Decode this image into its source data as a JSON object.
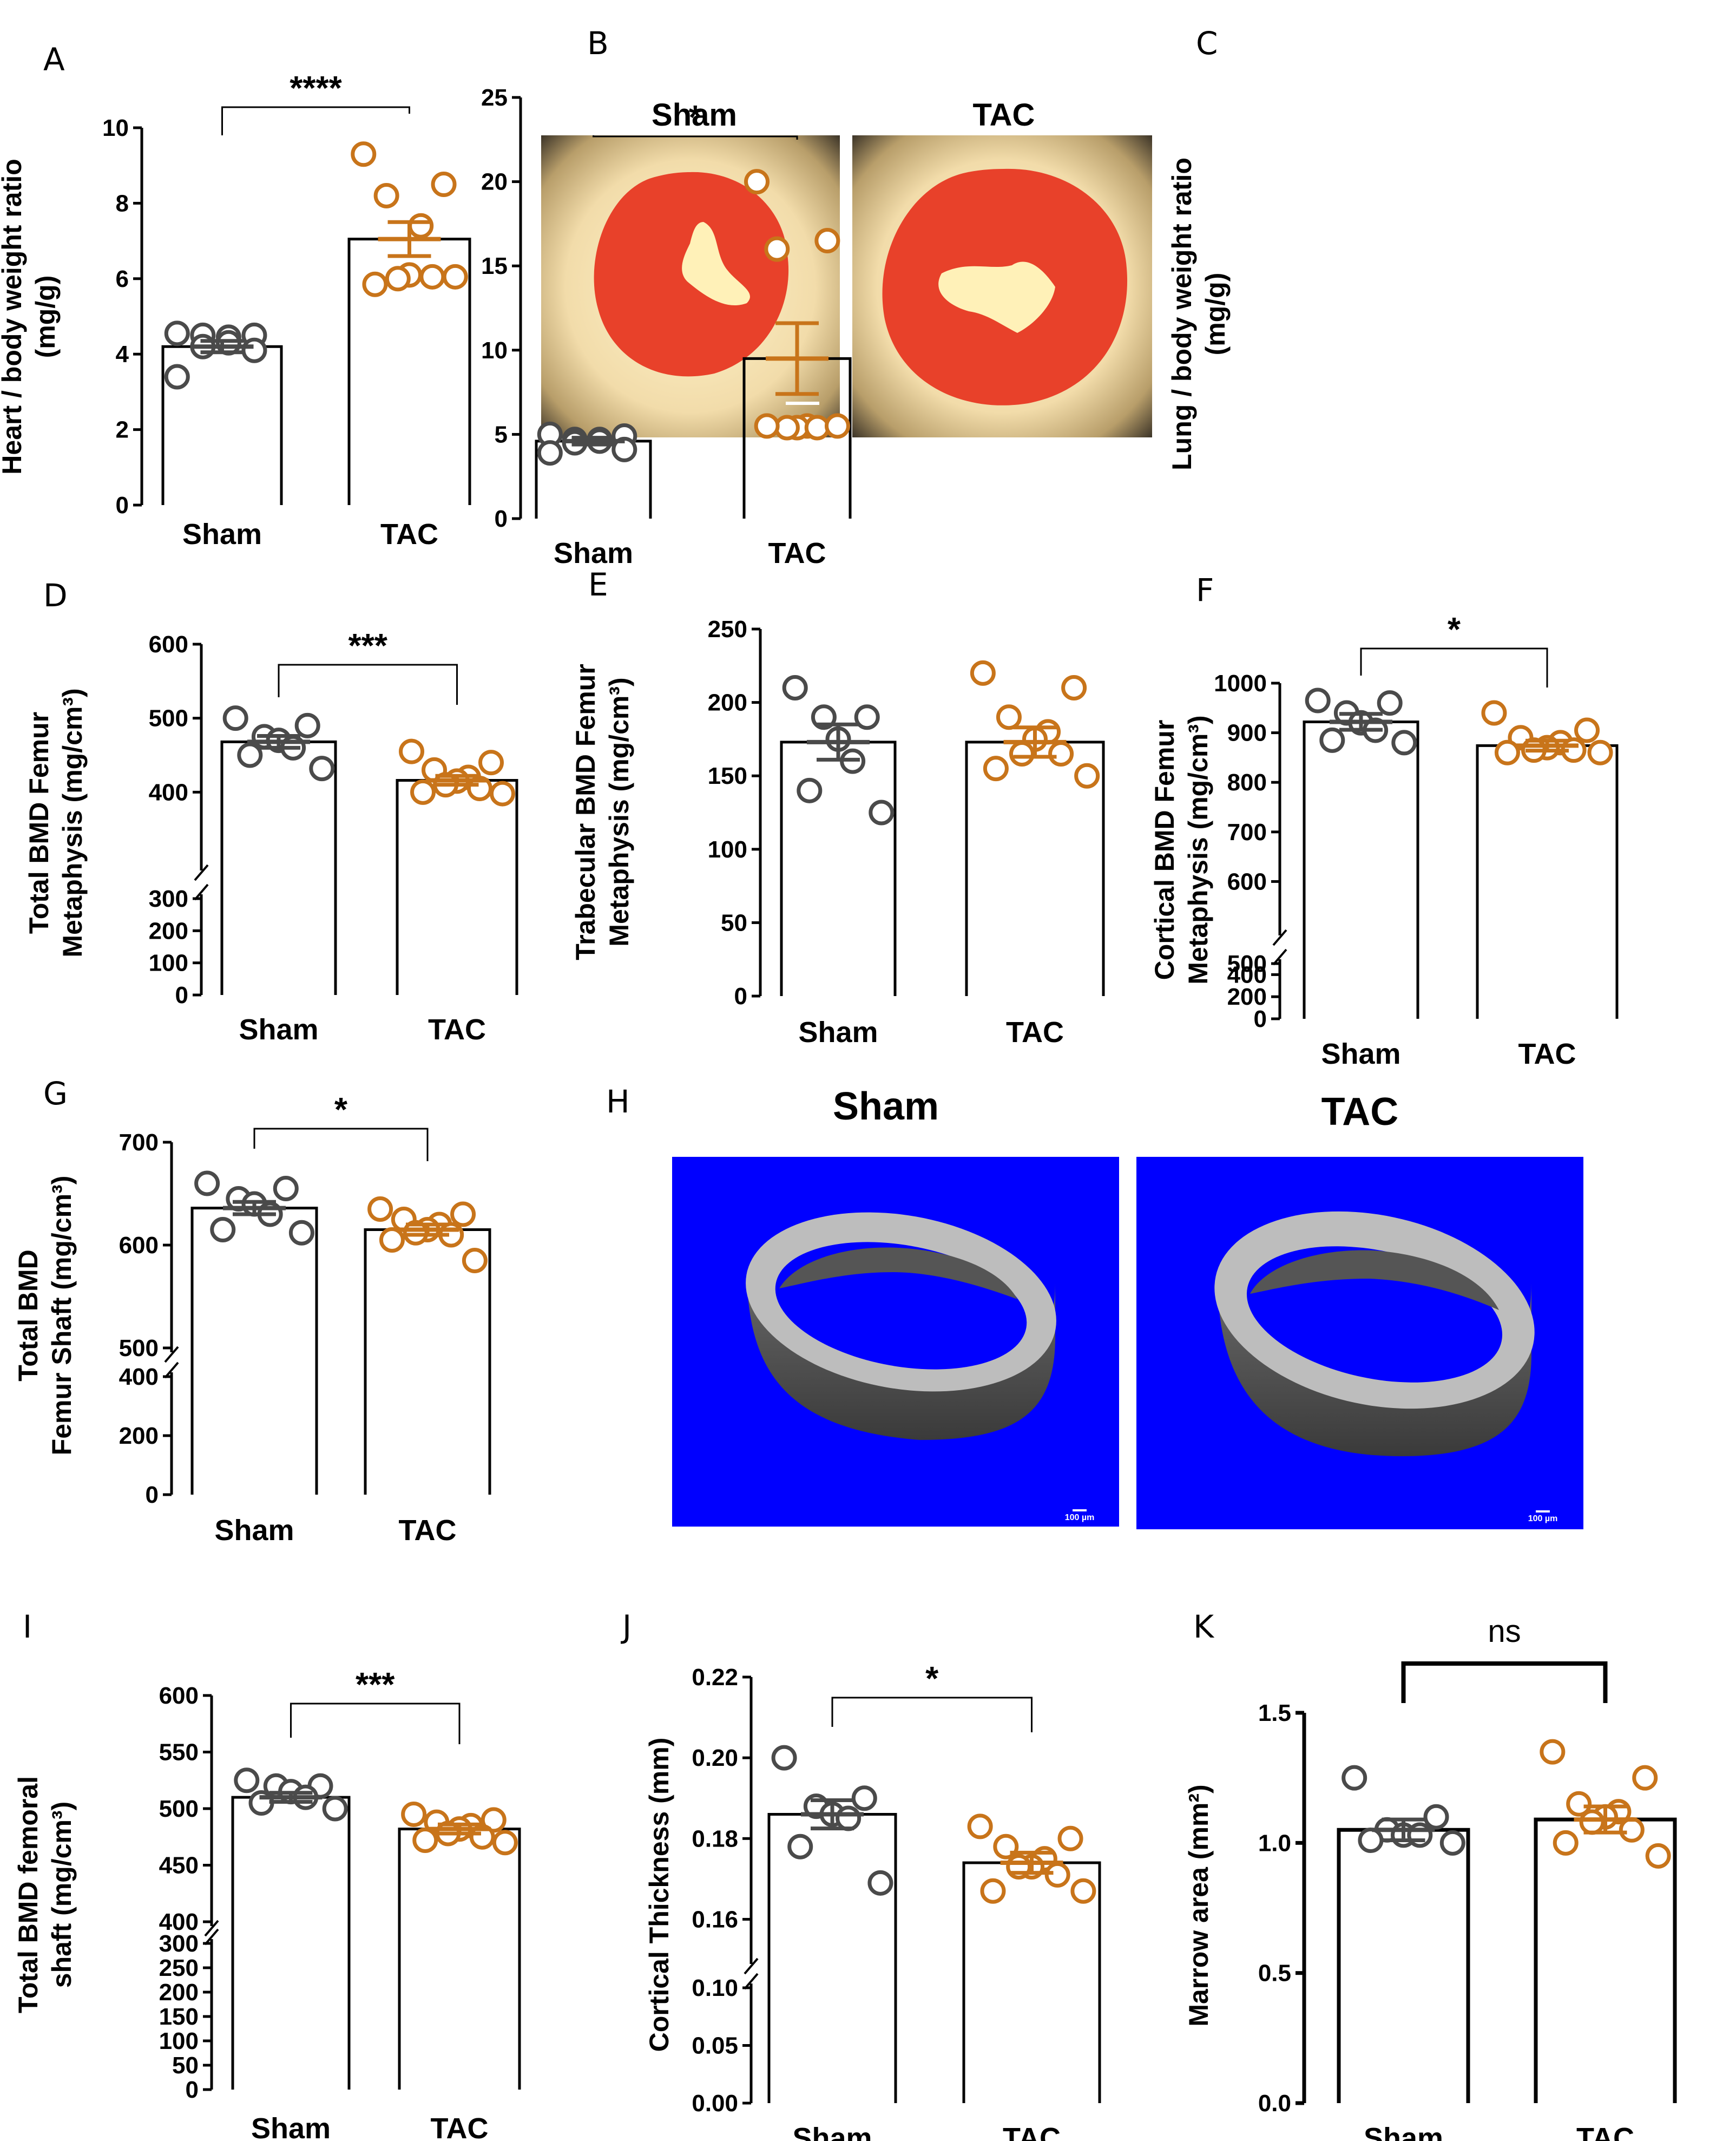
{
  "colors": {
    "sham": "#4a4a4a",
    "tac": "#c8741a",
    "axis": "#000000"
  },
  "chart_data": [
    {
      "id": "A",
      "type": "bar",
      "letter": "A",
      "categories": [
        "Sham",
        "TAC"
      ],
      "ylabel": [
        "Heart / body weight ratio",
        "(mg/g)"
      ],
      "ylim": [
        0,
        10
      ],
      "ticks": [
        {
          "v": 0,
          "t": "0"
        },
        {
          "v": 2,
          "t": "2"
        },
        {
          "v": 4,
          "t": "4"
        },
        {
          "v": 6,
          "t": "6"
        },
        {
          "v": 8,
          "t": "8"
        },
        {
          "v": 10,
          "t": "10"
        }
      ],
      "series": [
        {
          "name": "Sham",
          "mean": 4.2,
          "sem": 0.15,
          "points": [
            4.55,
            4.5,
            4.5,
            4.45,
            4.3,
            4.2,
            4.1,
            3.4
          ]
        },
        {
          "name": "TAC",
          "mean": 7.05,
          "sem": 0.45,
          "points": [
            9.3,
            8.5,
            8.2,
            7.4,
            6.1,
            6.0,
            6.05,
            5.85,
            6.05
          ]
        }
      ],
      "significance": "****",
      "sig_style": "bracket"
    },
    {
      "id": "C",
      "type": "bar",
      "letter": "C",
      "categories": [
        "Sham",
        "TAC"
      ],
      "ylabel": [
        "Lung / body weight ratio",
        "(mg/g)"
      ],
      "ylim": [
        0,
        25
      ],
      "ticks": [
        {
          "v": 0,
          "t": "0"
        },
        {
          "v": 5,
          "t": "5"
        },
        {
          "v": 10,
          "t": "10"
        },
        {
          "v": 15,
          "t": "15"
        },
        {
          "v": 20,
          "t": "20"
        },
        {
          "v": 25,
          "t": "25"
        }
      ],
      "series": [
        {
          "name": "Sham",
          "mean": 4.6,
          "sem": 0.2,
          "points": [
            5.0,
            4.9,
            4.7,
            4.7,
            4.6,
            4.5,
            4.1,
            3.9
          ]
        },
        {
          "name": "TAC",
          "mean": 9.5,
          "sem": 2.1,
          "points": [
            20.0,
            16.5,
            16.0,
            5.5,
            5.4,
            5.4,
            5.4,
            5.5,
            5.5
          ]
        }
      ],
      "significance": "*",
      "sig_style": "bracket"
    },
    {
      "id": "D",
      "type": "bar",
      "letter": "D",
      "categories": [
        "Sham",
        "TAC"
      ],
      "ylabel": [
        "Total BMD Femur",
        "Metaphysis (mg/cm³)"
      ],
      "ylim": [
        0,
        600
      ],
      "broken_axis": {
        "low": [
          0,
          300
        ],
        "high": [
          300,
          600
        ]
      },
      "ticks": [
        {
          "v": 0,
          "t": "0"
        },
        {
          "v": 100,
          "t": "100"
        },
        {
          "v": 200,
          "t": "200"
        },
        {
          "v": 300,
          "t": "300"
        },
        {
          "v": 400,
          "t": "400"
        },
        {
          "v": 500,
          "t": "500"
        },
        {
          "v": 600,
          "t": "600"
        }
      ],
      "series": [
        {
          "name": "Sham",
          "mean": 468,
          "sem": 8,
          "points": [
            500,
            490,
            475,
            470,
            460,
            450,
            432
          ]
        },
        {
          "name": "TAC",
          "mean": 416,
          "sem": 6,
          "points": [
            455,
            440,
            430,
            420,
            415,
            410,
            405,
            400,
            398
          ]
        }
      ],
      "significance": "***",
      "sig_style": "bracket"
    },
    {
      "id": "E",
      "type": "bar",
      "letter": "E",
      "categories": [
        "Sham",
        "TAC"
      ],
      "ylabel": [
        "Trabecular BMD Femur",
        "Metaphysis (mg/cm³)"
      ],
      "ylim": [
        0,
        250
      ],
      "ticks": [
        {
          "v": 0,
          "t": "0"
        },
        {
          "v": 50,
          "t": "50"
        },
        {
          "v": 100,
          "t": "100"
        },
        {
          "v": 150,
          "t": "150"
        },
        {
          "v": 200,
          "t": "200"
        },
        {
          "v": 250,
          "t": "250"
        }
      ],
      "series": [
        {
          "name": "Sham",
          "mean": 173,
          "sem": 12,
          "points": [
            210,
            190,
            190,
            175,
            160,
            140,
            125
          ]
        },
        {
          "name": "TAC",
          "mean": 173,
          "sem": 10,
          "points": [
            220,
            210,
            190,
            180,
            175,
            165,
            165,
            155,
            150
          ]
        }
      ],
      "significance": "",
      "sig_style": "none"
    },
    {
      "id": "F",
      "type": "bar",
      "letter": "F",
      "categories": [
        "Sham",
        "TAC"
      ],
      "ylabel": [
        "Cortical BMD Femur",
        "Metaphysis (mg/cm³)"
      ],
      "ylim": [
        0,
        1000
      ],
      "broken_axis": {
        "low": [
          0,
          500
        ],
        "high": [
          500,
          1000
        ]
      },
      "ticks": [
        {
          "v": 0,
          "t": "0"
        },
        {
          "v": 200,
          "t": "200"
        },
        {
          "v": 400,
          "t": "400"
        },
        {
          "v": 500,
          "t": "500"
        },
        {
          "v": 600,
          "t": "600"
        },
        {
          "v": 700,
          "t": "700"
        },
        {
          "v": 800,
          "t": "800"
        },
        {
          "v": 900,
          "t": "900"
        },
        {
          "v": 1000,
          "t": "1000"
        }
      ],
      "series": [
        {
          "name": "Sham",
          "mean": 922,
          "sem": 16,
          "points": [
            965,
            960,
            940,
            920,
            905,
            885,
            880
          ]
        },
        {
          "name": "TAC",
          "mean": 874,
          "sem": 10,
          "points": [
            940,
            905,
            890,
            880,
            870,
            865,
            865,
            860,
            860
          ]
        }
      ],
      "significance": "*",
      "sig_style": "bracket"
    },
    {
      "id": "G",
      "type": "bar",
      "letter": "G",
      "categories": [
        "Sham",
        "TAC"
      ],
      "ylabel": [
        "Total BMD",
        "Femur Shaft (mg/cm³)"
      ],
      "ylim": [
        0,
        700
      ],
      "broken_axis": {
        "low": [
          0,
          400
        ],
        "high": [
          500,
          700
        ]
      },
      "ticks": [
        {
          "v": 0,
          "t": "0"
        },
        {
          "v": 200,
          "t": "200"
        },
        {
          "v": 400,
          "t": "400"
        },
        {
          "v": 500,
          "t": "500"
        },
        {
          "v": 600,
          "t": "600"
        },
        {
          "v": 700,
          "t": "700"
        }
      ],
      "series": [
        {
          "name": "Sham",
          "mean": 636,
          "sem": 6,
          "points": [
            660,
            655,
            645,
            640,
            630,
            615,
            612
          ]
        },
        {
          "name": "TAC",
          "mean": 615,
          "sem": 5,
          "points": [
            635,
            630,
            625,
            620,
            615,
            612,
            610,
            605,
            585
          ]
        }
      ],
      "significance": "*",
      "sig_style": "bracket"
    },
    {
      "id": "I",
      "type": "bar",
      "letter": "I",
      "categories": [
        "Sham",
        "TAC"
      ],
      "ylabel": [
        "Total BMD femoral",
        "shaft (mg/cm³)"
      ],
      "ylim": [
        0,
        600
      ],
      "broken_axis": {
        "low": [
          0,
          300
        ],
        "high": [
          400,
          600
        ]
      },
      "ticks": [
        {
          "v": 0,
          "t": "0"
        },
        {
          "v": 50,
          "t": "50"
        },
        {
          "v": 100,
          "t": "100"
        },
        {
          "v": 150,
          "t": "150"
        },
        {
          "v": 200,
          "t": "200"
        },
        {
          "v": 250,
          "t": "250"
        },
        {
          "v": 300,
          "t": "300"
        },
        {
          "v": 400,
          "t": "400"
        },
        {
          "v": 450,
          "t": "450"
        },
        {
          "v": 500,
          "t": "500"
        },
        {
          "v": 550,
          "t": "550"
        },
        {
          "v": 600,
          "t": "600"
        }
      ],
      "series": [
        {
          "name": "Sham",
          "mean": 510,
          "sem": 4,
          "points": [
            525,
            520,
            520,
            515,
            510,
            505,
            500
          ]
        },
        {
          "name": "TAC",
          "mean": 482,
          "sem": 4,
          "points": [
            495,
            490,
            488,
            485,
            482,
            478,
            475,
            472,
            470
          ]
        }
      ],
      "significance": "***",
      "sig_style": "bracket"
    },
    {
      "id": "J",
      "type": "bar",
      "letter": "J",
      "categories": [
        "Sham",
        "TAC"
      ],
      "ylabel": [
        "Cortical Thickness (mm)"
      ],
      "ylim": [
        0,
        0.22
      ],
      "broken_axis": {
        "low": [
          0,
          0.1
        ],
        "high": [
          0.15,
          0.22
        ]
      },
      "ticks": [
        {
          "v": 0,
          "t": "0.00"
        },
        {
          "v": 0.05,
          "t": "0.05"
        },
        {
          "v": 0.1,
          "t": "0.10"
        },
        {
          "v": 0.16,
          "t": "0.16"
        },
        {
          "v": 0.18,
          "t": "0.18"
        },
        {
          "v": 0.2,
          "t": "0.20"
        },
        {
          "v": 0.22,
          "t": "0.22"
        }
      ],
      "series": [
        {
          "name": "Sham",
          "mean": 0.186,
          "sem": 0.0035,
          "points": [
            0.2,
            0.19,
            0.188,
            0.186,
            0.185,
            0.178,
            0.169
          ]
        },
        {
          "name": "TAC",
          "mean": 0.174,
          "sem": 0.0025,
          "points": [
            0.183,
            0.18,
            0.178,
            0.175,
            0.173,
            0.173,
            0.171,
            0.167,
            0.167
          ]
        }
      ],
      "significance": "*",
      "sig_style": "bracket"
    },
    {
      "id": "K",
      "type": "bar",
      "letter": "K",
      "categories": [
        "Sham",
        "TAC"
      ],
      "ylabel": [
        "Marrow area (mm²)"
      ],
      "ylim": [
        0,
        1.5
      ],
      "ticks": [
        {
          "v": 0,
          "t": "0.0"
        },
        {
          "v": 0.5,
          "t": "0.5"
        },
        {
          "v": 1.0,
          "t": "1.0"
        },
        {
          "v": 1.5,
          "t": "1.5"
        }
      ],
      "series": [
        {
          "name": "Sham",
          "mean": 1.05,
          "sem": 0.04,
          "points": [
            1.25,
            1.1,
            1.05,
            1.03,
            1.03,
            1.01,
            1.0
          ]
        },
        {
          "name": "TAC",
          "mean": 1.09,
          "sem": 0.05,
          "points": [
            1.35,
            1.25,
            1.15,
            1.12,
            1.1,
            1.08,
            1.05,
            1.0,
            0.95
          ]
        }
      ],
      "significance": "ns",
      "sig_style": "bracket-thick"
    }
  ],
  "images": {
    "B": {
      "letter": "B",
      "left_title": "Sham",
      "right_title": "TAC"
    },
    "H": {
      "letter": "H",
      "left_title": "Sham",
      "right_title": "TAC",
      "scale_label": "100 µm"
    }
  }
}
